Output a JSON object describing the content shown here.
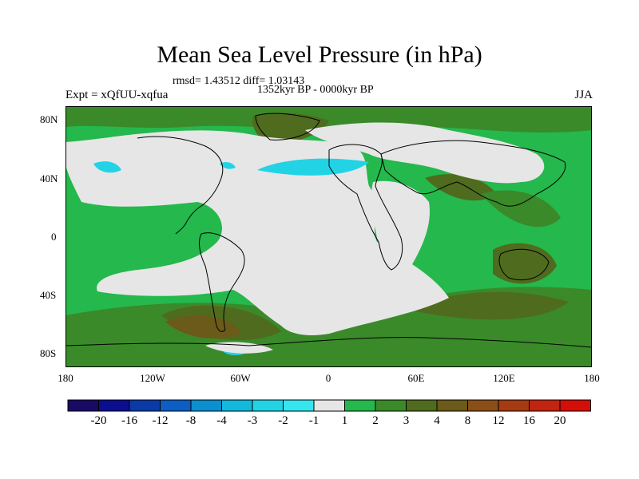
{
  "title": "Mean Sea Level Pressure (in hPa)",
  "stats_line": "rmsd= 1.43512 diff= 1.03143",
  "period": "1352kyr BP - 0000kyr BP",
  "experiment": "Expt = xQfUU-xqfua",
  "season": "JJA",
  "lat_labels": [
    "80N",
    "40N",
    "0",
    "40S",
    "80S"
  ],
  "lon_labels": [
    "180",
    "120W",
    "60W",
    "0",
    "60E",
    "120E",
    "180"
  ],
  "colorbar": {
    "labels": [
      "-20",
      "-16",
      "-12",
      "-8",
      "-4",
      "-3",
      "-2",
      "-1",
      "1",
      "2",
      "3",
      "4",
      "8",
      "12",
      "16",
      "20"
    ],
    "colors": [
      "#1a0a66",
      "#0b0f8f",
      "#0a3aa8",
      "#0b5fc4",
      "#0a8fd0",
      "#12b9dd",
      "#22d3e6",
      "#35e6ee",
      "#e6e6e6",
      "#25b84c",
      "#3a8a2a",
      "#4f6b1e",
      "#6b5a19",
      "#8a4e17",
      "#a63a12",
      "#c32410",
      "#d50e08"
    ]
  },
  "map_colors": {
    "land_low": "#e6e6e6",
    "green": "#25b84c",
    "dark_green": "#3a8a2a",
    "olive": "#4f6b1e",
    "brown": "#6b5a19",
    "cyan": "#22d3e6"
  }
}
